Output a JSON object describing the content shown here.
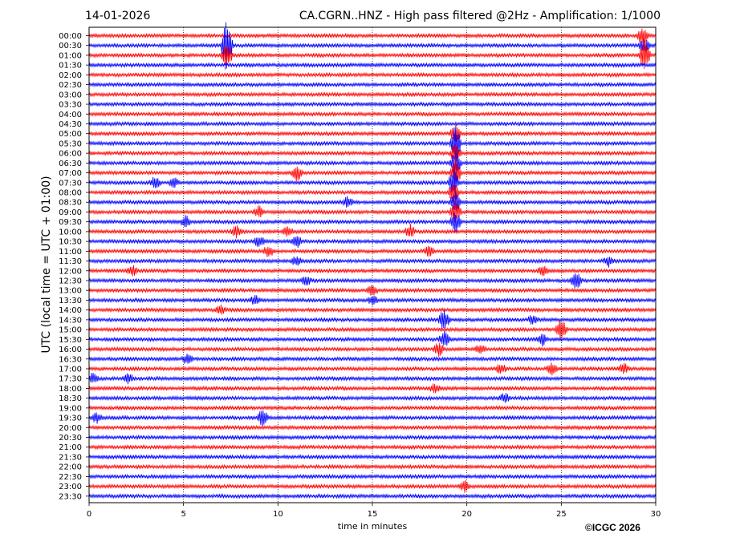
{
  "header": {
    "date": "14-01-2026",
    "title": "CA.CGRN..HNZ - High pass filtered @2Hz - Amplification: 1/1000"
  },
  "footer": {
    "copyright": "©ICGC 2026"
  },
  "colors": {
    "even_trace": "#ff0000",
    "odd_trace": "#0000ff",
    "axis": "#000000"
  },
  "chart_data": {
    "type": "line",
    "title": "CA.CGRN..HNZ - High pass filtered @2Hz - Amplification: 1/1000",
    "xlabel": "time in minutes",
    "ylabel": "UTC (local time = UTC + 01:00)",
    "xlim": [
      0,
      30
    ],
    "x_ticks": [
      0,
      5,
      10,
      15,
      20,
      25,
      30
    ],
    "grid": "vertical dotted lines at 5-minute intervals",
    "trace_colors": [
      "red",
      "blue"
    ],
    "rows": [
      {
        "label": "00:00",
        "events": [
          {
            "t": 29.3,
            "amp": 1.2
          }
        ]
      },
      {
        "label": "00:30",
        "events": [
          {
            "t": 7.3,
            "amp": 4.5
          },
          {
            "t": 29.4,
            "amp": 1.0
          }
        ]
      },
      {
        "label": "01:00",
        "events": [
          {
            "t": 7.3,
            "amp": 2.0
          },
          {
            "t": 29.4,
            "amp": 2.5
          }
        ]
      },
      {
        "label": "01:30",
        "events": []
      },
      {
        "label": "02:00",
        "events": []
      },
      {
        "label": "02:30",
        "events": []
      },
      {
        "label": "03:00",
        "events": []
      },
      {
        "label": "03:30",
        "events": []
      },
      {
        "label": "04:00",
        "events": []
      },
      {
        "label": "04:30",
        "events": []
      },
      {
        "label": "05:00",
        "events": [
          {
            "t": 19.4,
            "amp": 1.2
          }
        ]
      },
      {
        "label": "05:30",
        "events": [
          {
            "t": 19.4,
            "amp": 2.5
          }
        ]
      },
      {
        "label": "06:00",
        "events": [
          {
            "t": 19.4,
            "amp": 1.5
          }
        ]
      },
      {
        "label": "06:30",
        "events": [
          {
            "t": 19.4,
            "amp": 2.0
          }
        ]
      },
      {
        "label": "07:00",
        "events": [
          {
            "t": 11.0,
            "amp": 1.2
          },
          {
            "t": 19.4,
            "amp": 2.0
          }
        ]
      },
      {
        "label": "07:30",
        "events": [
          {
            "t": 3.5,
            "amp": 0.8
          },
          {
            "t": 4.5,
            "amp": 0.7
          },
          {
            "t": 19.3,
            "amp": 2.0
          }
        ]
      },
      {
        "label": "08:00",
        "events": [
          {
            "t": 19.3,
            "amp": 1.5
          }
        ]
      },
      {
        "label": "08:30",
        "events": [
          {
            "t": 13.7,
            "amp": 0.7
          },
          {
            "t": 19.4,
            "amp": 1.5
          }
        ]
      },
      {
        "label": "09:00",
        "events": [
          {
            "t": 9.0,
            "amp": 0.8
          },
          {
            "t": 19.4,
            "amp": 1.5
          }
        ]
      },
      {
        "label": "09:30",
        "events": [
          {
            "t": 5.1,
            "amp": 0.8
          },
          {
            "t": 19.4,
            "amp": 1.5
          }
        ]
      },
      {
        "label": "10:00",
        "events": [
          {
            "t": 7.8,
            "amp": 0.8
          },
          {
            "t": 10.5,
            "amp": 0.8
          },
          {
            "t": 17.0,
            "amp": 0.9
          }
        ]
      },
      {
        "label": "10:30",
        "events": [
          {
            "t": 9.0,
            "amp": 0.8
          },
          {
            "t": 11.0,
            "amp": 0.8
          }
        ]
      },
      {
        "label": "11:00",
        "events": [
          {
            "t": 9.5,
            "amp": 0.8
          },
          {
            "t": 18.0,
            "amp": 0.8
          }
        ]
      },
      {
        "label": "11:30",
        "events": [
          {
            "t": 11.0,
            "amp": 0.7
          },
          {
            "t": 27.5,
            "amp": 0.7
          }
        ]
      },
      {
        "label": "12:00",
        "events": [
          {
            "t": 2.3,
            "amp": 0.7
          },
          {
            "t": 24.0,
            "amp": 0.7
          }
        ]
      },
      {
        "label": "12:30",
        "events": [
          {
            "t": 11.5,
            "amp": 0.7
          },
          {
            "t": 25.8,
            "amp": 1.2
          }
        ]
      },
      {
        "label": "13:00",
        "events": [
          {
            "t": 15.0,
            "amp": 0.7
          }
        ]
      },
      {
        "label": "13:30",
        "events": [
          {
            "t": 8.8,
            "amp": 0.6
          },
          {
            "t": 15.0,
            "amp": 0.6
          }
        ]
      },
      {
        "label": "14:00",
        "events": [
          {
            "t": 7.0,
            "amp": 0.6
          }
        ]
      },
      {
        "label": "14:30",
        "events": [
          {
            "t": 18.8,
            "amp": 1.5
          },
          {
            "t": 23.5,
            "amp": 0.7
          }
        ]
      },
      {
        "label": "15:00",
        "events": [
          {
            "t": 25.0,
            "amp": 1.5
          }
        ]
      },
      {
        "label": "15:30",
        "events": [
          {
            "t": 18.8,
            "amp": 1.2
          },
          {
            "t": 24.0,
            "amp": 0.8
          }
        ]
      },
      {
        "label": "16:00",
        "events": [
          {
            "t": 18.5,
            "amp": 1.0
          },
          {
            "t": 20.7,
            "amp": 0.7
          }
        ]
      },
      {
        "label": "16:30",
        "events": [
          {
            "t": 5.2,
            "amp": 0.7
          }
        ]
      },
      {
        "label": "17:00",
        "events": [
          {
            "t": 21.8,
            "amp": 0.7
          },
          {
            "t": 24.5,
            "amp": 0.7
          },
          {
            "t": 28.3,
            "amp": 0.7
          }
        ]
      },
      {
        "label": "17:30",
        "events": [
          {
            "t": 0.2,
            "amp": 0.7
          },
          {
            "t": 2.1,
            "amp": 0.7
          }
        ]
      },
      {
        "label": "18:00",
        "events": [
          {
            "t": 18.3,
            "amp": 0.6
          }
        ]
      },
      {
        "label": "18:30",
        "events": [
          {
            "t": 22.0,
            "amp": 0.6
          }
        ]
      },
      {
        "label": "19:00",
        "events": []
      },
      {
        "label": "19:30",
        "events": [
          {
            "t": 0.4,
            "amp": 0.7
          },
          {
            "t": 9.2,
            "amp": 1.5
          }
        ]
      },
      {
        "label": "20:00",
        "events": []
      },
      {
        "label": "20:30",
        "events": []
      },
      {
        "label": "21:00",
        "events": []
      },
      {
        "label": "21:30",
        "events": []
      },
      {
        "label": "22:00",
        "events": []
      },
      {
        "label": "22:30",
        "events": []
      },
      {
        "label": "23:00",
        "events": [
          {
            "t": 19.9,
            "amp": 0.7
          }
        ]
      },
      {
        "label": "23:30",
        "events": []
      }
    ]
  }
}
